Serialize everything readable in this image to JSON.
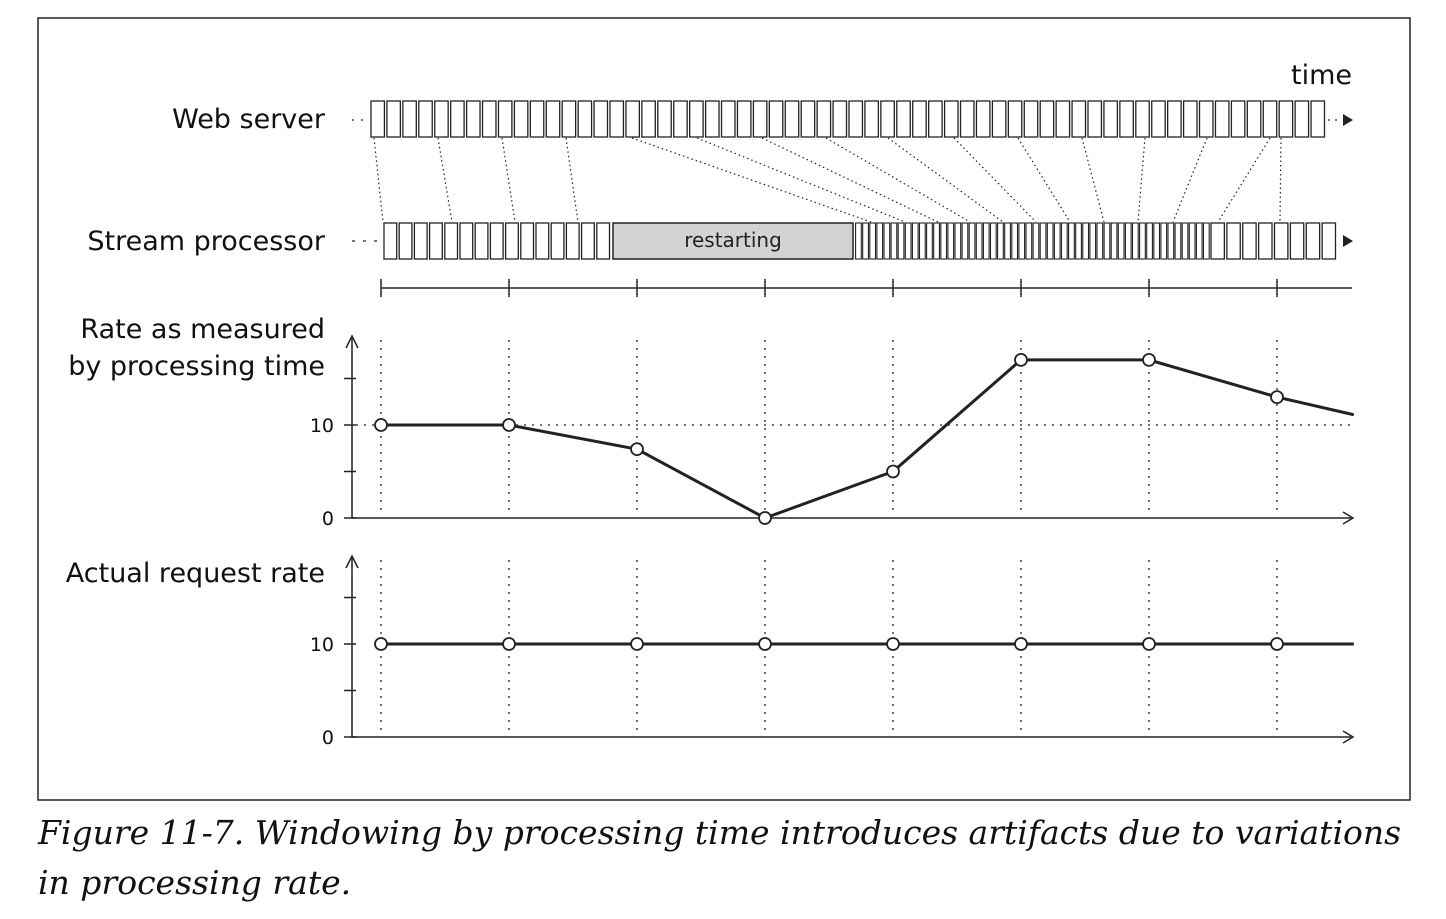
{
  "diagram": {
    "time_label": "time",
    "web_server_label": "Web server",
    "stream_processor_label": "Stream processor",
    "restarting_label": "restarting",
    "restarting_fill": "#d3d3d3",
    "line_color": "#222222"
  },
  "chart_data": [
    {
      "type": "line",
      "ylabel": "Rate as measured\nby processing time",
      "ylabel_lines": [
        "Rate as measured",
        "by processing time"
      ],
      "x": [
        0,
        1,
        2,
        3,
        4,
        5,
        6,
        7,
        7.6
      ],
      "values": [
        10,
        10,
        7.4,
        0,
        5,
        17,
        17,
        13,
        11.1
      ],
      "ylim": [
        0,
        20
      ],
      "yticks": [
        0,
        5,
        10,
        15
      ],
      "yticklabels": [
        "0",
        "",
        "10",
        ""
      ],
      "reference_line": 10,
      "markers_at": [
        0,
        1,
        2,
        3,
        4,
        5,
        6,
        7
      ],
      "grid": "vertical dotted"
    },
    {
      "type": "line",
      "ylabel": "Actual request rate",
      "x": [
        0,
        1,
        2,
        3,
        4,
        5,
        6,
        7,
        7.6
      ],
      "values": [
        10,
        10,
        10,
        10,
        10,
        10,
        10,
        10,
        10
      ],
      "ylim": [
        0,
        20
      ],
      "yticks": [
        0,
        5,
        10,
        15
      ],
      "yticklabels": [
        "0",
        "",
        "10",
        ""
      ],
      "markers_at": [
        0,
        1,
        2,
        3,
        4,
        5,
        6,
        7
      ],
      "grid": "vertical dotted"
    }
  ],
  "caption": "Figure 11-7. Windowing by processing time introduces artifacts due to variations in processing rate."
}
